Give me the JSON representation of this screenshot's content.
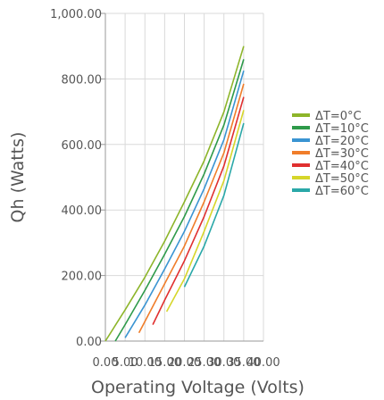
{
  "chart_data": {
    "type": "line",
    "title": "",
    "xlabel": "Operating Voltage (Volts)",
    "ylabel": "Qh (Watts)",
    "xlim": [
      0.0,
      40.0
    ],
    "ylim": [
      0.0,
      1000.0
    ],
    "x_ticks": [
      "0.00",
      "5.00",
      "10.00",
      "15.00",
      "20.00",
      "25.00",
      "30.00",
      "35.00",
      "40.00"
    ],
    "y_ticks": [
      "0.00",
      "200.00",
      "400.00",
      "600.00",
      "800.00",
      "1,000.00"
    ],
    "grid": true,
    "legend_position": "right",
    "series": [
      {
        "name": "ΔT=0°C",
        "color": "#8db52a",
        "x": [
          0,
          5,
          10,
          15,
          20,
          25,
          30,
          35
        ],
        "y": [
          0,
          95,
          195,
          305,
          425,
          550,
          700,
          900
        ]
      },
      {
        "name": "ΔT=10°C",
        "color": "#2e9a4a",
        "x": [
          2.5,
          5,
          10,
          15,
          20,
          25,
          30,
          35
        ],
        "y": [
          0,
          50,
          155,
          265,
          380,
          510,
          660,
          860
        ]
      },
      {
        "name": "ΔT=20°C",
        "color": "#3a94d2",
        "x": [
          5,
          10,
          15,
          20,
          25,
          30,
          35
        ],
        "y": [
          10,
          110,
          220,
          335,
          465,
          615,
          825
        ]
      },
      {
        "name": "ΔT=30°C",
        "color": "#f07d2a",
        "x": [
          8.5,
          10,
          15,
          20,
          25,
          30,
          35
        ],
        "y": [
          25,
          60,
          175,
          290,
          425,
          575,
          785
        ]
      },
      {
        "name": "ΔT=40°C",
        "color": "#e03030",
        "x": [
          12,
          15,
          20,
          25,
          30,
          35
        ],
        "y": [
          50,
          125,
          245,
          380,
          535,
          745
        ]
      },
      {
        "name": "ΔT=50°C",
        "color": "#d6d62a",
        "x": [
          15.5,
          20,
          25,
          30,
          35
        ],
        "y": [
          90,
          190,
          335,
          490,
          705
        ]
      },
      {
        "name": "ΔT=60°C",
        "color": "#2aa8a8",
        "x": [
          20,
          25,
          30,
          35
        ],
        "y": [
          165,
          290,
          445,
          665
        ]
      }
    ]
  }
}
